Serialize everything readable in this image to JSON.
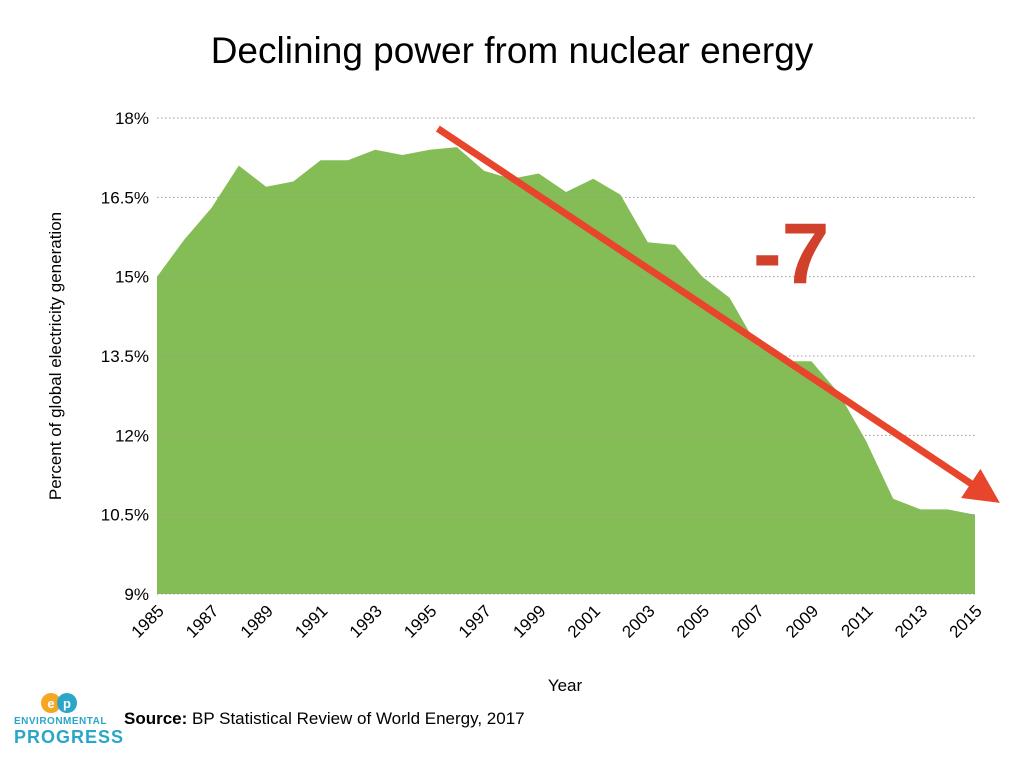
{
  "title": "Declining power from nuclear energy",
  "source": {
    "label": "Source:",
    "text": " BP Statistical Review of World Energy, 2017"
  },
  "logo": {
    "line1": "ENVIRONMENTAL",
    "line2": "PROGRESS",
    "colors": {
      "orange": "#f5a623",
      "blue": "#2aa6c8"
    }
  },
  "annotation": {
    "text": "-7",
    "color": "#d0402a"
  },
  "colors": {
    "area": "#84bd55",
    "arrow": "#e8452d",
    "grid": "#999999"
  },
  "chart_data": {
    "type": "area",
    "title": "Declining power from nuclear energy",
    "xlabel": "Year",
    "ylabel": "Percent of global electricity generation",
    "ylim": [
      9,
      18
    ],
    "yticks": [
      "9%",
      "10.5%",
      "12%",
      "13.5%",
      "15%",
      "16.5%",
      "18%"
    ],
    "ytick_values": [
      9,
      10.5,
      12,
      13.5,
      15,
      16.5,
      18
    ],
    "xticks": [
      "1985",
      "1987",
      "1989",
      "1991",
      "1993",
      "1995",
      "1997",
      "1999",
      "2001",
      "2003",
      "2005",
      "2007",
      "2009",
      "2011",
      "2013",
      "2015"
    ],
    "grid": "horizontal dotted",
    "x": [
      1985,
      1986,
      1987,
      1988,
      1989,
      1990,
      1991,
      1992,
      1993,
      1994,
      1995,
      1996,
      1997,
      1998,
      1999,
      2000,
      2001,
      2002,
      2003,
      2004,
      2005,
      2006,
      2007,
      2008,
      2009,
      2010,
      2011,
      2012,
      2013,
      2014,
      2015
    ],
    "values": [
      15.0,
      15.7,
      16.3,
      17.1,
      16.7,
      16.8,
      17.2,
      17.2,
      17.4,
      17.3,
      17.4,
      17.45,
      17.0,
      16.85,
      16.95,
      16.6,
      16.85,
      16.55,
      15.65,
      15.6,
      15.0,
      14.6,
      13.7,
      13.4,
      13.4,
      12.8,
      11.9,
      10.8,
      10.6,
      10.6,
      10.5
    ],
    "arrow": {
      "from": [
        1995.3,
        17.8
      ],
      "to": [
        2015.4,
        10.9
      ]
    }
  }
}
